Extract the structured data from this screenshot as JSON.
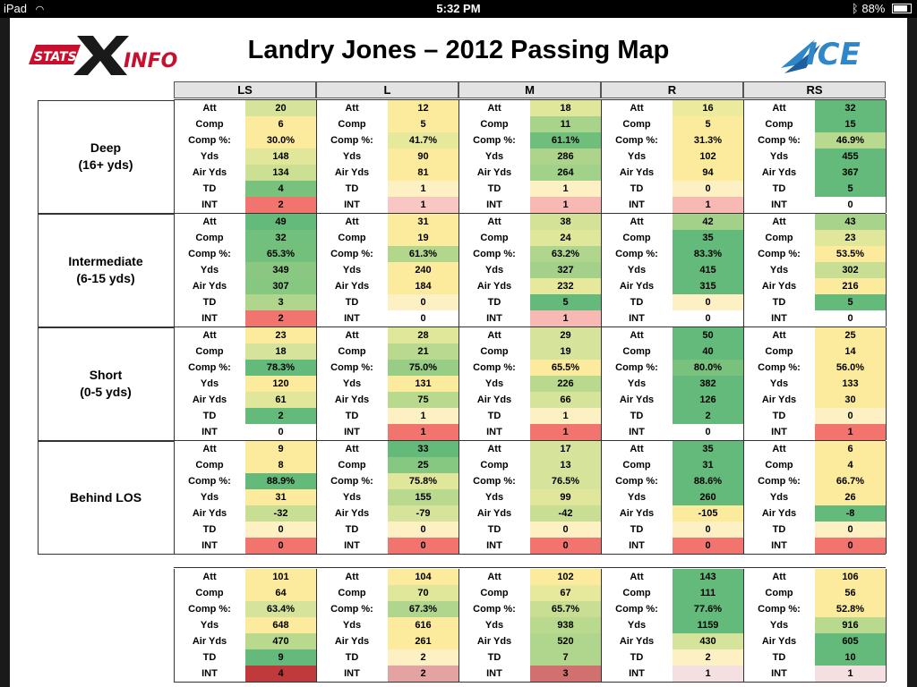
{
  "status_bar": {
    "device": "iPad",
    "time": "5:32 PM",
    "battery": "88%"
  },
  "title": "Landry Jones – 2012 Passing Map",
  "logos": {
    "left": "STATS X INFO",
    "right": "ICE"
  },
  "columns": [
    "LS",
    "L",
    "M",
    "R",
    "RS"
  ],
  "stat_labels": [
    "Att",
    "Comp",
    "Comp %:",
    "Yds",
    "Air Yds",
    "TD",
    "INT"
  ],
  "sections": [
    {
      "label_line1": "Deep",
      "label_line2": "(16+ yds)",
      "cells": [
        [
          {
            "v": "20",
            "c": "#d6e39a"
          },
          {
            "v": "6",
            "c": "#fceb9c"
          },
          {
            "v": "30.0%",
            "c": "#fceb9c"
          },
          {
            "v": "148",
            "c": "#e0e69a"
          },
          {
            "v": "134",
            "c": "#cce094"
          },
          {
            "v": "4",
            "c": "#78c27e"
          },
          {
            "v": "2",
            "c": "#f2746e"
          }
        ],
        [
          {
            "v": "12",
            "c": "#fceb9c"
          },
          {
            "v": "5",
            "c": "#fceb9c"
          },
          {
            "v": "41.7%",
            "c": "#e6e89c"
          },
          {
            "v": "90",
            "c": "#fceb9c"
          },
          {
            "v": "81",
            "c": "#fceb9c"
          },
          {
            "v": "1",
            "c": "#fdf1c4"
          },
          {
            "v": "1",
            "c": "#f8c6c3"
          }
        ],
        [
          {
            "v": "18",
            "c": "#e0e69a"
          },
          {
            "v": "11",
            "c": "#a8d38a"
          },
          {
            "v": "61.1%",
            "c": "#6fbe7b"
          },
          {
            "v": "286",
            "c": "#aed48c"
          },
          {
            "v": "264",
            "c": "#a2d189"
          },
          {
            "v": "1",
            "c": "#fdf1c4"
          },
          {
            "v": "1",
            "c": "#f8b8b4"
          }
        ],
        [
          {
            "v": "16",
            "c": "#ecea9d"
          },
          {
            "v": "5",
            "c": "#fceb9c"
          },
          {
            "v": "31.3%",
            "c": "#fceb9c"
          },
          {
            "v": "102",
            "c": "#fceb9c"
          },
          {
            "v": "94",
            "c": "#fceb9c"
          },
          {
            "v": "0",
            "c": "#fdf1c4"
          },
          {
            "v": "1",
            "c": "#f8b8b4"
          }
        ],
        [
          {
            "v": "32",
            "c": "#63ba7a"
          },
          {
            "v": "15",
            "c": "#63ba7a"
          },
          {
            "v": "46.9%",
            "c": "#b9d98f"
          },
          {
            "v": "455",
            "c": "#63ba7a"
          },
          {
            "v": "367",
            "c": "#63ba7a"
          },
          {
            "v": "5",
            "c": "#63ba7a"
          },
          {
            "v": "0",
            "c": "#ffffff"
          }
        ]
      ]
    },
    {
      "label_line1": "Intermediate",
      "label_line2": "(6-15 yds)",
      "cells": [
        [
          {
            "v": "49",
            "c": "#63ba7a"
          },
          {
            "v": "32",
            "c": "#72c07c"
          },
          {
            "v": "65.3%",
            "c": "#72c07c"
          },
          {
            "v": "349",
            "c": "#8ac882"
          },
          {
            "v": "307",
            "c": "#86c781"
          },
          {
            "v": "3",
            "c": "#b0d58c"
          },
          {
            "v": "2",
            "c": "#f2746e"
          }
        ],
        [
          {
            "v": "31",
            "c": "#fceb9c"
          },
          {
            "v": "19",
            "c": "#fceb9c"
          },
          {
            "v": "61.3%",
            "c": "#b3d68d"
          },
          {
            "v": "240",
            "c": "#fceb9c"
          },
          {
            "v": "184",
            "c": "#fceb9c"
          },
          {
            "v": "0",
            "c": "#fdf1c4"
          },
          {
            "v": "0",
            "c": "#ffffff"
          }
        ],
        [
          {
            "v": "38",
            "c": "#d4e297"
          },
          {
            "v": "24",
            "c": "#e0e69a"
          },
          {
            "v": "63.2%",
            "c": "#b0d58c"
          },
          {
            "v": "327",
            "c": "#a4d18a"
          },
          {
            "v": "232",
            "c": "#e6e89c"
          },
          {
            "v": "5",
            "c": "#63ba7a"
          },
          {
            "v": "1",
            "c": "#f8b8b4"
          }
        ],
        [
          {
            "v": "42",
            "c": "#a4d18a"
          },
          {
            "v": "35",
            "c": "#63ba7a"
          },
          {
            "v": "83.3%",
            "c": "#63ba7a"
          },
          {
            "v": "415",
            "c": "#63ba7a"
          },
          {
            "v": "315",
            "c": "#63ba7a"
          },
          {
            "v": "0",
            "c": "#fdf1c4"
          },
          {
            "v": "0",
            "c": "#ffffff"
          }
        ],
        [
          {
            "v": "43",
            "c": "#a8d38a"
          },
          {
            "v": "23",
            "c": "#e0e69a"
          },
          {
            "v": "53.5%",
            "c": "#fceb9c"
          },
          {
            "v": "302",
            "c": "#c8de93"
          },
          {
            "v": "216",
            "c": "#fceb9c"
          },
          {
            "v": "5",
            "c": "#63ba7a"
          },
          {
            "v": "0",
            "c": "#ffffff"
          }
        ]
      ]
    },
    {
      "label_line1": "Short",
      "label_line2": "(0-5 yds)",
      "cells": [
        [
          {
            "v": "23",
            "c": "#fceb9c"
          },
          {
            "v": "18",
            "c": "#d6e39a"
          },
          {
            "v": "78.3%",
            "c": "#63ba7a"
          },
          {
            "v": "120",
            "c": "#fceb9c"
          },
          {
            "v": "61",
            "c": "#e0e69a"
          },
          {
            "v": "2",
            "c": "#63ba7a"
          },
          {
            "v": "0",
            "c": "#ffffff"
          }
        ],
        [
          {
            "v": "28",
            "c": "#e0e69a"
          },
          {
            "v": "21",
            "c": "#b9d98f"
          },
          {
            "v": "75.0%",
            "c": "#98cd86"
          },
          {
            "v": "131",
            "c": "#fceb9c"
          },
          {
            "v": "75",
            "c": "#b9d98f"
          },
          {
            "v": "1",
            "c": "#fdf1c4"
          },
          {
            "v": "1",
            "c": "#f2746e"
          }
        ],
        [
          {
            "v": "29",
            "c": "#d6e39a"
          },
          {
            "v": "19",
            "c": "#d6e39a"
          },
          {
            "v": "65.5%",
            "c": "#fceb9c"
          },
          {
            "v": "226",
            "c": "#b9d98f"
          },
          {
            "v": "66",
            "c": "#d6e39a"
          },
          {
            "v": "1",
            "c": "#fdf1c4"
          },
          {
            "v": "1",
            "c": "#f2746e"
          }
        ],
        [
          {
            "v": "50",
            "c": "#63ba7a"
          },
          {
            "v": "40",
            "c": "#63ba7a"
          },
          {
            "v": "80.0%",
            "c": "#78c27e"
          },
          {
            "v": "382",
            "c": "#63ba7a"
          },
          {
            "v": "126",
            "c": "#63ba7a"
          },
          {
            "v": "2",
            "c": "#63ba7a"
          },
          {
            "v": "0",
            "c": "#ffffff"
          }
        ],
        [
          {
            "v": "25",
            "c": "#fceb9c"
          },
          {
            "v": "14",
            "c": "#fceb9c"
          },
          {
            "v": "56.0%",
            "c": "#fceb9c"
          },
          {
            "v": "133",
            "c": "#fceb9c"
          },
          {
            "v": "30",
            "c": "#fceb9c"
          },
          {
            "v": "0",
            "c": "#fdf1c4"
          },
          {
            "v": "1",
            "c": "#f2746e"
          }
        ]
      ]
    },
    {
      "label_line1": "Behind LOS",
      "label_line2": "",
      "cells": [
        [
          {
            "v": "9",
            "c": "#fceb9c"
          },
          {
            "v": "8",
            "c": "#fceb9c"
          },
          {
            "v": "88.9%",
            "c": "#63ba7a"
          },
          {
            "v": "31",
            "c": "#fceb9c"
          },
          {
            "v": "-32",
            "c": "#c8de93"
          },
          {
            "v": "0",
            "c": "#fdf1c4"
          },
          {
            "v": "0",
            "c": "#f2746e"
          }
        ],
        [
          {
            "v": "33",
            "c": "#63ba7a"
          },
          {
            "v": "25",
            "c": "#86c781"
          },
          {
            "v": "75.8%",
            "c": "#e0e69a"
          },
          {
            "v": "155",
            "c": "#b9d98f"
          },
          {
            "v": "-79",
            "c": "#d6e39a"
          },
          {
            "v": "0",
            "c": "#fdf1c4"
          },
          {
            "v": "0",
            "c": "#f2746e"
          }
        ],
        [
          {
            "v": "17",
            "c": "#d6e39a"
          },
          {
            "v": "13",
            "c": "#d6e39a"
          },
          {
            "v": "76.5%",
            "c": "#d6e39a"
          },
          {
            "v": "99",
            "c": "#e0e69a"
          },
          {
            "v": "-42",
            "c": "#c8de93"
          },
          {
            "v": "0",
            "c": "#fdf1c4"
          },
          {
            "v": "0",
            "c": "#f2746e"
          }
        ],
        [
          {
            "v": "35",
            "c": "#63ba7a"
          },
          {
            "v": "31",
            "c": "#63ba7a"
          },
          {
            "v": "88.6%",
            "c": "#63ba7a"
          },
          {
            "v": "260",
            "c": "#63ba7a"
          },
          {
            "v": "-105",
            "c": "#fceb9c"
          },
          {
            "v": "0",
            "c": "#fdf1c4"
          },
          {
            "v": "0",
            "c": "#f2746e"
          }
        ],
        [
          {
            "v": "6",
            "c": "#fceb9c"
          },
          {
            "v": "4",
            "c": "#fceb9c"
          },
          {
            "v": "66.7%",
            "c": "#fceb9c"
          },
          {
            "v": "26",
            "c": "#fceb9c"
          },
          {
            "v": "-8",
            "c": "#63ba7a"
          },
          {
            "v": "0",
            "c": "#fdf1c4"
          },
          {
            "v": "0",
            "c": "#f2746e"
          }
        ]
      ]
    }
  ],
  "totals": {
    "cells": [
      [
        {
          "v": "101",
          "c": "#fceb9c"
        },
        {
          "v": "64",
          "c": "#fceb9c"
        },
        {
          "v": "63.4%",
          "c": "#d6e39a"
        },
        {
          "v": "648",
          "c": "#fceb9c"
        },
        {
          "v": "470",
          "c": "#b9d98f"
        },
        {
          "v": "9",
          "c": "#63ba7a"
        },
        {
          "v": "4",
          "c": "#c0393b"
        }
      ],
      [
        {
          "v": "104",
          "c": "#fceb9c"
        },
        {
          "v": "70",
          "c": "#e0e69a"
        },
        {
          "v": "67.3%",
          "c": "#b0d58c"
        },
        {
          "v": "616",
          "c": "#fceb9c"
        },
        {
          "v": "261",
          "c": "#fceb9c"
        },
        {
          "v": "2",
          "c": "#fdf1c4"
        },
        {
          "v": "2",
          "c": "#e3a3a0"
        }
      ],
      [
        {
          "v": "102",
          "c": "#fceb9c"
        },
        {
          "v": "67",
          "c": "#e6e89c"
        },
        {
          "v": "65.7%",
          "c": "#c8de93"
        },
        {
          "v": "938",
          "c": "#b9d98f"
        },
        {
          "v": "520",
          "c": "#b0d58c"
        },
        {
          "v": "7",
          "c": "#b0d58c"
        },
        {
          "v": "3",
          "c": "#d0706f"
        }
      ],
      [
        {
          "v": "143",
          "c": "#63ba7a"
        },
        {
          "v": "111",
          "c": "#63ba7a"
        },
        {
          "v": "77.6%",
          "c": "#63ba7a"
        },
        {
          "v": "1159",
          "c": "#63ba7a"
        },
        {
          "v": "430",
          "c": "#d6e39a"
        },
        {
          "v": "2",
          "c": "#fdf1c4"
        },
        {
          "v": "1",
          "c": "#f4e0e0"
        }
      ],
      [
        {
          "v": "106",
          "c": "#fceb9c"
        },
        {
          "v": "56",
          "c": "#fceb9c"
        },
        {
          "v": "52.8%",
          "c": "#fceb9c"
        },
        {
          "v": "916",
          "c": "#b9d98f"
        },
        {
          "v": "605",
          "c": "#63ba7a"
        },
        {
          "v": "10",
          "c": "#63ba7a"
        },
        {
          "v": "1",
          "c": "#f4e0e0"
        }
      ]
    ]
  }
}
